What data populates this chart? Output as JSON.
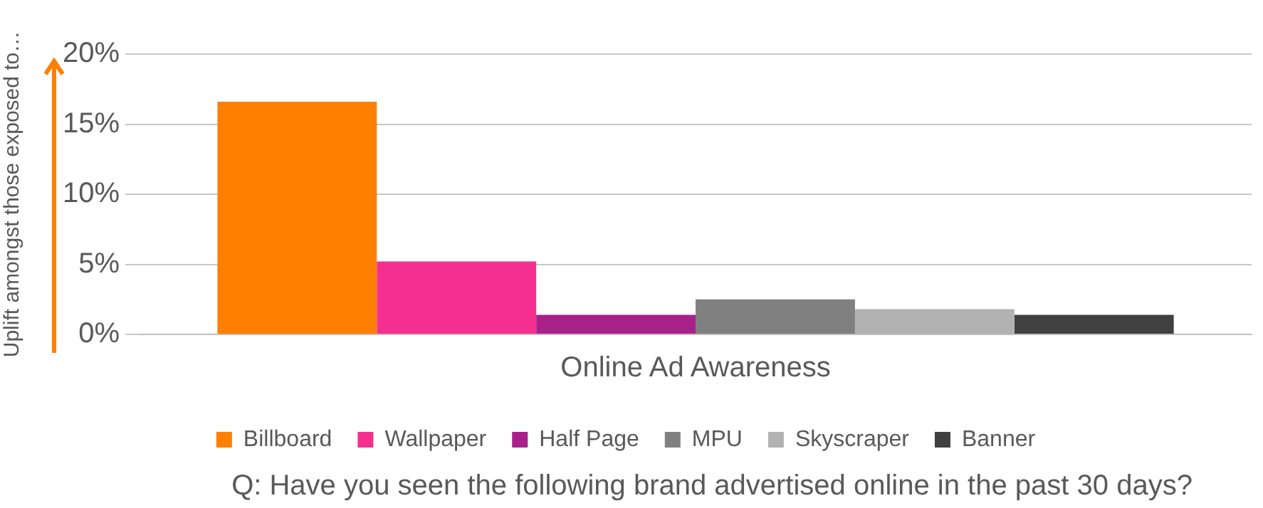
{
  "chart_data": {
    "type": "bar",
    "ylabel": "Uplift amongst those exposed to…",
    "categories": [
      "Online Ad Awareness"
    ],
    "series": [
      {
        "name": "Billboard",
        "color": "#ff7f00",
        "values": [
          16.6
        ]
      },
      {
        "name": "Wallpaper",
        "color": "#f52f8f",
        "values": [
          5.2
        ]
      },
      {
        "name": "Half Page",
        "color": "#a8208a",
        "values": [
          1.4
        ]
      },
      {
        "name": "MPU",
        "color": "#808080",
        "values": [
          2.5
        ]
      },
      {
        "name": "Skyscraper",
        "color": "#b2b2b2",
        "values": [
          1.8
        ]
      },
      {
        "name": "Banner",
        "color": "#404040",
        "values": [
          1.4
        ]
      }
    ],
    "ylim": [
      0,
      20
    ],
    "yticks": [
      {
        "value": 0,
        "label": "0%"
      },
      {
        "value": 5,
        "label": "5%"
      },
      {
        "value": 10,
        "label": "10%"
      },
      {
        "value": 15,
        "label": "15%"
      },
      {
        "value": 20,
        "label": "20%"
      }
    ],
    "grid": "y",
    "legend": "bottom",
    "annotations": [
      "Q: Have you seen the following brand advertised online in the past 30 days?"
    ]
  }
}
